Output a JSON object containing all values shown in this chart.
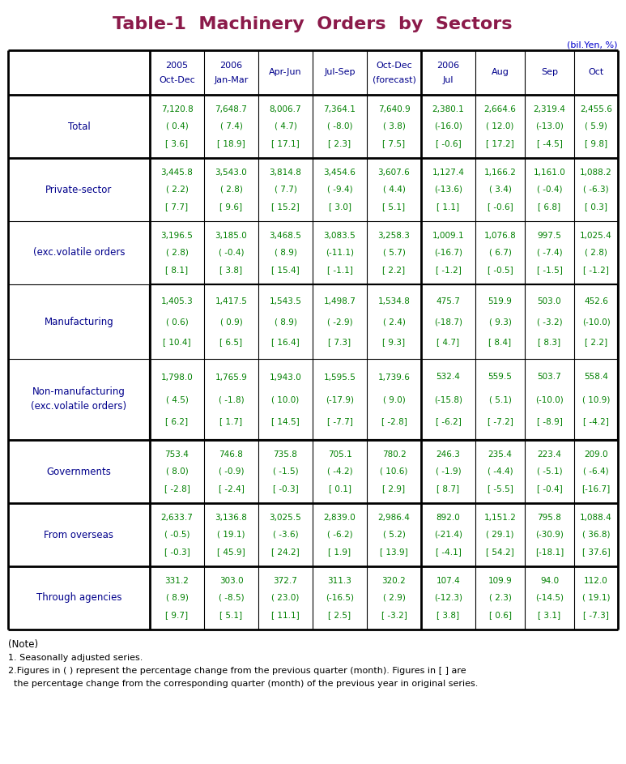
{
  "title": "Table-1  Machinery  Orders  by  Sectors",
  "subtitle": "(bil.Yen, %)",
  "title_color": "#8B1A4A",
  "subtitle_color": "#0000CD",
  "col_header_color": "#00008B",
  "row_label_color": "#00008B",
  "data_color": "#008000",
  "col_headers": [
    [
      "",
      ""
    ],
    [
      "2005",
      "Oct-Dec"
    ],
    [
      "2006",
      "Jan-Mar"
    ],
    [
      "",
      "Apr-Jun"
    ],
    [
      "",
      "Jul-Sep"
    ],
    [
      "Oct-Dec",
      "(forecast)"
    ],
    [
      "2006",
      "Jul"
    ],
    [
      "",
      "Aug"
    ],
    [
      "",
      "Sep"
    ],
    [
      "",
      "Oct"
    ]
  ],
  "rows": [
    {
      "label": [
        "Total",
        ""
      ],
      "indent": false,
      "data": [
        [
          "7,120.8",
          "( 0.4)",
          "[ 3.6]"
        ],
        [
          "7,648.7",
          "( 7.4)",
          "[ 18.9]"
        ],
        [
          "8,006.7",
          "( 4.7)",
          "[ 17.1]"
        ],
        [
          "7,364.1",
          "( -8.0)",
          "[ 2.3]"
        ],
        [
          "7,640.9",
          "( 3.8)",
          "[ 7.5]"
        ],
        [
          "2,380.1",
          "(-16.0)",
          "[ -0.6]"
        ],
        [
          "2,664.6",
          "( 12.0)",
          "[ 17.2]"
        ],
        [
          "2,319.4",
          "(-13.0)",
          "[ -4.5]"
        ],
        [
          "2,455.6",
          "( 5.9)",
          "[ 9.8]"
        ]
      ]
    },
    {
      "label": [
        "Private-sector",
        ""
      ],
      "indent": false,
      "data": [
        [
          "3,445.8",
          "( 2.2)",
          "[ 7.7]"
        ],
        [
          "3,543.0",
          "( 2.8)",
          "[ 9.6]"
        ],
        [
          "3,814.8",
          "( 7.7)",
          "[ 15.2]"
        ],
        [
          "3,454.6",
          "( -9.4)",
          "[ 3.0]"
        ],
        [
          "3,607.6",
          "( 4.4)",
          "[ 5.1]"
        ],
        [
          "1,127.4",
          "(-13.6)",
          "[ 1.1]"
        ],
        [
          "1,166.2",
          "( 3.4)",
          "[ -0.6]"
        ],
        [
          "1,161.0",
          "( -0.4)",
          "[ 6.8]"
        ],
        [
          "1,088.2",
          "( -6.3)",
          "[ 0.3]"
        ]
      ]
    },
    {
      "label": [
        "(exc.volatile orders",
        ""
      ],
      "indent": false,
      "data": [
        [
          "3,196.5",
          "( 2.8)",
          "[ 8.1]"
        ],
        [
          "3,185.0",
          "( -0.4)",
          "[ 3.8]"
        ],
        [
          "3,468.5",
          "( 8.9)",
          "[ 15.4]"
        ],
        [
          "3,083.5",
          "(-11.1)",
          "[ -1.1]"
        ],
        [
          "3,258.3",
          "( 5.7)",
          "[ 2.2]"
        ],
        [
          "1,009.1",
          "(-16.7)",
          "[ -1.2]"
        ],
        [
          "1,076.8",
          "( 6.7)",
          "[ -0.5]"
        ],
        [
          "997.5",
          "( -7.4)",
          "[ -1.5]"
        ],
        [
          "1,025.4",
          "( 2.8)",
          "[ -1.2]"
        ]
      ]
    },
    {
      "label": [
        "Manufacturing",
        ""
      ],
      "indent": true,
      "data": [
        [
          "1,405.3",
          "( 0.6)",
          "[ 10.4]"
        ],
        [
          "1,417.5",
          "( 0.9)",
          "[ 6.5]"
        ],
        [
          "1,543.5",
          "( 8.9)",
          "[ 16.4]"
        ],
        [
          "1,498.7",
          "( -2.9)",
          "[ 7.3]"
        ],
        [
          "1,534.8",
          "( 2.4)",
          "[ 9.3]"
        ],
        [
          "475.7",
          "(-18.7)",
          "[ 4.7]"
        ],
        [
          "519.9",
          "( 9.3)",
          "[ 8.4]"
        ],
        [
          "503.0",
          "( -3.2)",
          "[ 8.3]"
        ],
        [
          "452.6",
          "(-10.0)",
          "[ 2.2]"
        ]
      ]
    },
    {
      "label": [
        "Non-manufacturing",
        "(exc.volatile orders)"
      ],
      "indent": true,
      "data": [
        [
          "1,798.0",
          "( 4.5)",
          "[ 6.2]"
        ],
        [
          "1,765.9",
          "( -1.8)",
          "[ 1.7]"
        ],
        [
          "1,943.0",
          "( 10.0)",
          "[ 14.5]"
        ],
        [
          "1,595.5",
          "(-17.9)",
          "[ -7.7]"
        ],
        [
          "1,739.6",
          "( 9.0)",
          "[ -2.8]"
        ],
        [
          "532.4",
          "(-15.8)",
          "[ -6.2]"
        ],
        [
          "559.5",
          "( 5.1)",
          "[ -7.2]"
        ],
        [
          "503.7",
          "(-10.0)",
          "[ -8.9]"
        ],
        [
          "558.4",
          "( 10.9)",
          "[ -4.2]"
        ]
      ]
    },
    {
      "label": [
        "Governments",
        ""
      ],
      "indent": false,
      "data": [
        [
          "753.4",
          "( 8.0)",
          "[ -2.8]"
        ],
        [
          "746.8",
          "( -0.9)",
          "[ -2.4]"
        ],
        [
          "735.8",
          "( -1.5)",
          "[ -0.3]"
        ],
        [
          "705.1",
          "( -4.2)",
          "[ 0.1]"
        ],
        [
          "780.2",
          "( 10.6)",
          "[ 2.9]"
        ],
        [
          "246.3",
          "( -1.9)",
          "[ 8.7]"
        ],
        [
          "235.4",
          "( -4.4)",
          "[ -5.5]"
        ],
        [
          "223.4",
          "( -5.1)",
          "[ -0.4]"
        ],
        [
          "209.0",
          "( -6.4)",
          "[-16.7]"
        ]
      ]
    },
    {
      "label": [
        "From overseas",
        ""
      ],
      "indent": false,
      "data": [
        [
          "2,633.7",
          "( -0.5)",
          "[ -0.3]"
        ],
        [
          "3,136.8",
          "( 19.1)",
          "[ 45.9]"
        ],
        [
          "3,025.5",
          "( -3.6)",
          "[ 24.2]"
        ],
        [
          "2,839.0",
          "( -6.2)",
          "[ 1.9]"
        ],
        [
          "2,986.4",
          "( 5.2)",
          "[ 13.9]"
        ],
        [
          "892.0",
          "(-21.4)",
          "[ -4.1]"
        ],
        [
          "1,151.2",
          "( 29.1)",
          "[ 54.2]"
        ],
        [
          "795.8",
          "(-30.9)",
          "[-18.1]"
        ],
        [
          "1,088.4",
          "( 36.8)",
          "[ 37.6]"
        ]
      ]
    },
    {
      "label": [
        "Through agencies",
        ""
      ],
      "indent": false,
      "data": [
        [
          "331.2",
          "( 8.9)",
          "[ 9.7]"
        ],
        [
          "303.0",
          "( -8.5)",
          "[ 5.1]"
        ],
        [
          "372.7",
          "( 23.0)",
          "[ 11.1]"
        ],
        [
          "311.3",
          "(-16.5)",
          "[ 2.5]"
        ],
        [
          "320.2",
          "( 2.9)",
          "[ -3.2]"
        ],
        [
          "107.4",
          "(-12.3)",
          "[ 3.8]"
        ],
        [
          "109.9",
          "( 2.3)",
          "[ 0.6]"
        ],
        [
          "94.0",
          "(-14.5)",
          "[ 3.1]"
        ],
        [
          "112.0",
          "( 19.1)",
          "[ -7.3]"
        ]
      ]
    }
  ],
  "notes": [
    "(Note)",
    "1. Seasonally adjusted series.",
    "2.Figures in ( ) represent the percentage change from the previous quarter (month). Figures in [ ] are",
    "  the percentage change from the corresponding quarter (month) of the previous year in original series."
  ]
}
